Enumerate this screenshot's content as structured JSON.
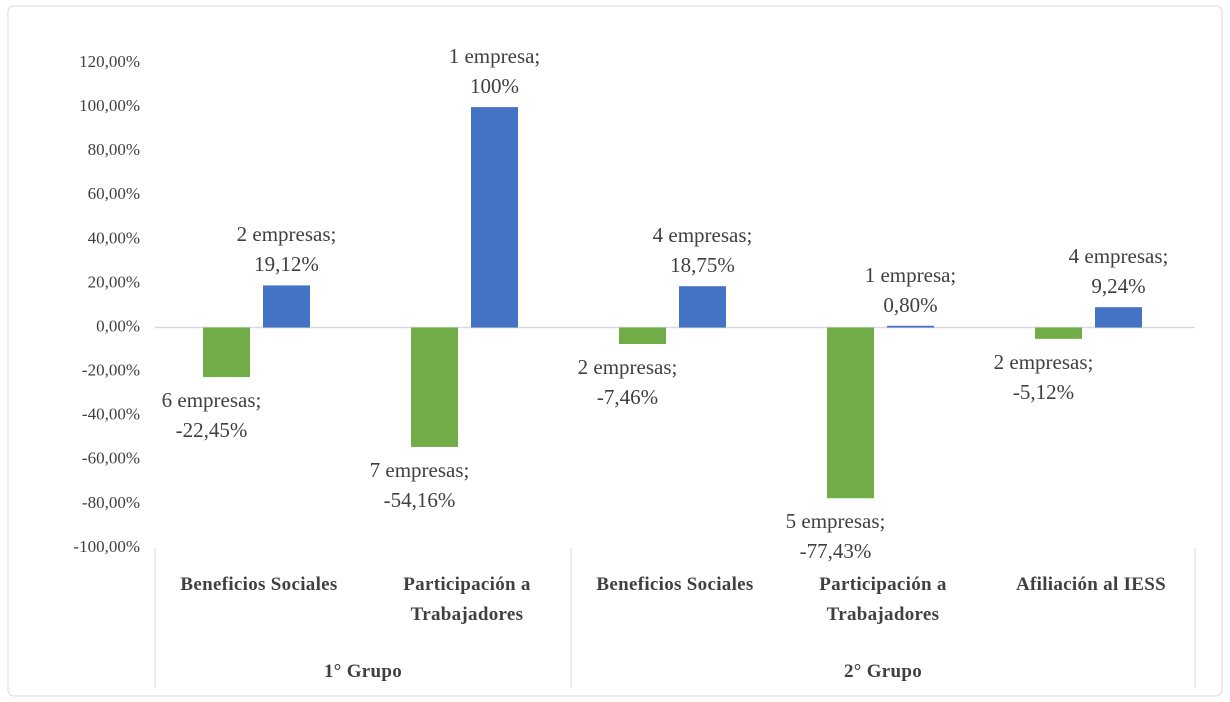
{
  "chart_data": {
    "type": "bar",
    "groups": [
      {
        "label": "1° Grupo",
        "categories": [
          "Beneficios Sociales",
          "Participación a Trabajadores"
        ]
      },
      {
        "label": "2° Grupo",
        "categories": [
          "Beneficios Sociales",
          "Participación a Trabajadores",
          "Afiliación al IESS"
        ]
      }
    ],
    "series": [
      {
        "color": "#70ad47",
        "values": [
          -22.45,
          -54.16,
          -7.46,
          -77.43,
          -5.12
        ],
        "value_labels": [
          "6 empresas; -22,45%",
          "7 empresas; -54,16%",
          "2 empresas; -7,46%",
          "5 empresas; -77,43%",
          "2 empresas; -5,12%"
        ]
      },
      {
        "color": "#4472c4",
        "values": [
          19.12,
          100,
          18.75,
          0.8,
          9.24
        ],
        "value_labels": [
          "2 empresas; 19,12%",
          "1 empresa; 100%",
          "4 empresas; 18,75%",
          "1 empresa; 0,80%",
          "4 empresas; 9,24%"
        ]
      }
    ],
    "ylim": [
      -100,
      120
    ],
    "yticks": [
      {
        "value": 120,
        "label": "120,00%"
      },
      {
        "value": 100,
        "label": "100,00%"
      },
      {
        "value": 80,
        "label": "80,00%"
      },
      {
        "value": 60,
        "label": "60,00%"
      },
      {
        "value": 40,
        "label": "40,00%"
      },
      {
        "value": 20,
        "label": "20,00%"
      },
      {
        "value": 0,
        "label": "0,00%"
      },
      {
        "value": -20,
        "label": "-20,00%"
      },
      {
        "value": -40,
        "label": "-40,00%"
      },
      {
        "value": -60,
        "label": "-60,00%"
      },
      {
        "value": -80,
        "label": "-80,00%"
      },
      {
        "value": -100,
        "label": "-100,00%"
      }
    ],
    "grid": false
  }
}
